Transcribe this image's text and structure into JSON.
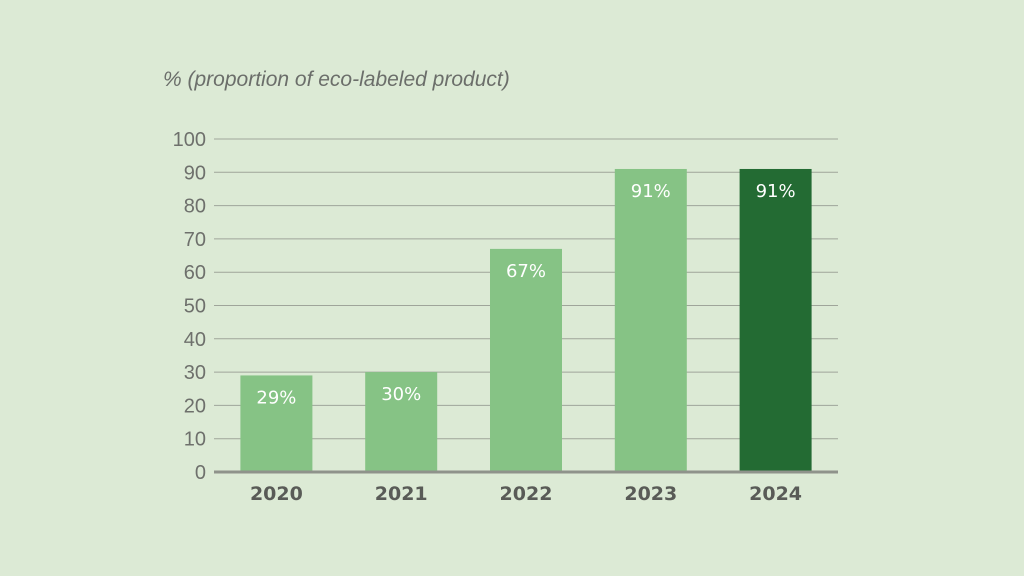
{
  "chart_data": {
    "type": "bar",
    "ylabel": "% (proportion of eco-labeled product)",
    "categories": [
      "2020",
      "2021",
      "2022",
      "2023",
      "2024"
    ],
    "values": [
      29,
      30,
      67,
      91,
      91
    ],
    "value_labels": [
      "29%",
      "30%",
      "67%",
      "91%",
      "91%"
    ],
    "ylim": [
      0,
      100
    ],
    "yticks": [
      "0",
      "10",
      "20",
      "30",
      "40",
      "50",
      "60",
      "70",
      "80",
      "90",
      "100"
    ],
    "grid": true,
    "colors": {
      "bar": "#86c385",
      "highlight_bar": "#236b33",
      "highlight_index": 4,
      "gridline": "#9fa59a",
      "baseline": "#8f938b"
    }
  }
}
